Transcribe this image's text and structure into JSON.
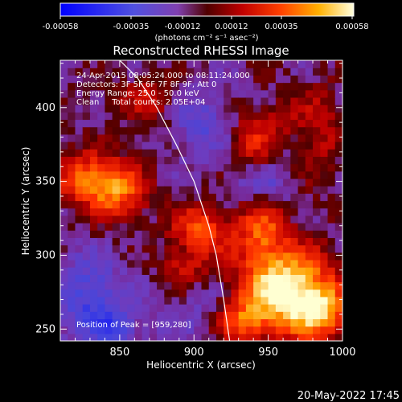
{
  "chart_data": {
    "type": "heatmap",
    "title": "Reconstructed RHESSI Image",
    "xlabel": "Heliocentric X (arcsec)",
    "ylabel": "Heliocentric Y (arcsec)",
    "xlim": [
      810,
      1000
    ],
    "ylim": [
      242,
      432
    ],
    "x_ticks": [
      850,
      900,
      950,
      1000
    ],
    "y_ticks": [
      250,
      300,
      350,
      400
    ],
    "colorbar": {
      "ticks": [
        "-0.00058",
        "-0.00035",
        "-0.00012",
        "0.00012",
        "0.00035",
        "0.00058"
      ],
      "range": [
        -0.00058,
        0.00058
      ],
      "unit_label": "(photons cm⁻² s⁻¹ asec⁻²)"
    },
    "annotations": [
      "24-Apr-2015 08:05:24.000 to 08:11:24.000",
      "Detectors: 3F 5F 6F 7F 8F 9F, Att 0",
      "Energy Range: 25.0 - 50.0 keV",
      "Clean     Total counts: 2.05E+04"
    ],
    "peak_label": "Position of Peak = [959,280]",
    "peak": [
      959,
      280
    ],
    "limb_curve": [
      [
        850,
        432
      ],
      [
        862,
        420
      ],
      [
        875,
        400
      ],
      [
        888,
        375
      ],
      [
        900,
        350
      ],
      [
        910,
        320
      ],
      [
        915,
        300
      ],
      [
        920,
        270
      ],
      [
        924,
        242
      ]
    ],
    "blobs": [
      {
        "x": 960,
        "y": 278,
        "sx": 22,
        "sy": 20,
        "a": 0.00062
      },
      {
        "x": 985,
        "y": 262,
        "sx": 14,
        "sy": 14,
        "a": 0.00038
      },
      {
        "x": 930,
        "y": 255,
        "sx": 14,
        "sy": 10,
        "a": 0.0003
      },
      {
        "x": 945,
        "y": 318,
        "sx": 12,
        "sy": 14,
        "a": 0.0003
      },
      {
        "x": 830,
        "y": 352,
        "sx": 16,
        "sy": 12,
        "a": 0.0004
      },
      {
        "x": 850,
        "y": 342,
        "sx": 14,
        "sy": 14,
        "a": 0.0003
      },
      {
        "x": 905,
        "y": 318,
        "sx": 14,
        "sy": 12,
        "a": 0.00035
      },
      {
        "x": 893,
        "y": 292,
        "sx": 10,
        "sy": 8,
        "a": 0.00022
      },
      {
        "x": 870,
        "y": 405,
        "sx": 14,
        "sy": 12,
        "a": 0.0002
      },
      {
        "x": 940,
        "y": 378,
        "sx": 12,
        "sy": 14,
        "a": 0.00026
      },
      {
        "x": 985,
        "y": 385,
        "sx": 10,
        "sy": 22,
        "a": 0.00018
      },
      {
        "x": 960,
        "y": 395,
        "sx": 10,
        "sy": 10,
        "a": 0.00012
      },
      {
        "x": 830,
        "y": 270,
        "sx": 16,
        "sy": 22,
        "a": -0.00028
      },
      {
        "x": 848,
        "y": 250,
        "sx": 10,
        "sy": 10,
        "a": -0.0002
      },
      {
        "x": 905,
        "y": 390,
        "sx": 16,
        "sy": 16,
        "a": -0.0002
      },
      {
        "x": 945,
        "y": 350,
        "sx": 14,
        "sy": 10,
        "a": -0.00016
      },
      {
        "x": 910,
        "y": 262,
        "sx": 12,
        "sy": 14,
        "a": -0.00014
      },
      {
        "x": 880,
        "y": 255,
        "sx": 10,
        "sy": 10,
        "a": -0.0001
      }
    ],
    "colors": {
      "background": "#000000",
      "axes": "#ffffff",
      "limb": "#ffffff"
    },
    "footer_timestamp": "20-May-2022 17:45"
  }
}
